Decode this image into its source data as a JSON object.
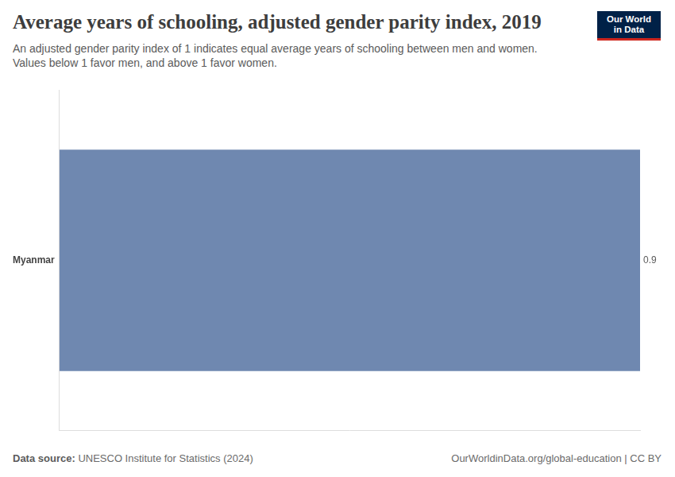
{
  "chart_data": {
    "type": "bar",
    "title": "Average years of schooling, adjusted gender parity index, 2019",
    "subtitle": [
      "An adjusted gender parity index of 1 indicates equal average years of schooling between men and women.",
      "Values below 1 favor men, and above 1 favor women."
    ],
    "logo": "Our World in Data",
    "source_label": "Data source:",
    "source": "UNESCO Institute for Statistics (2024)",
    "footer": "OurWorldinData.org/global-education | CC BY",
    "categories": [
      "Myanmar"
    ],
    "values": [
      0.9
    ],
    "color": "#6f88b0",
    "orientation": "horizontal",
    "xlim": [
      0,
      0.9
    ],
    "xticks": [],
    "grid": false,
    "data_labels": true,
    "tick_labels": "y"
  }
}
